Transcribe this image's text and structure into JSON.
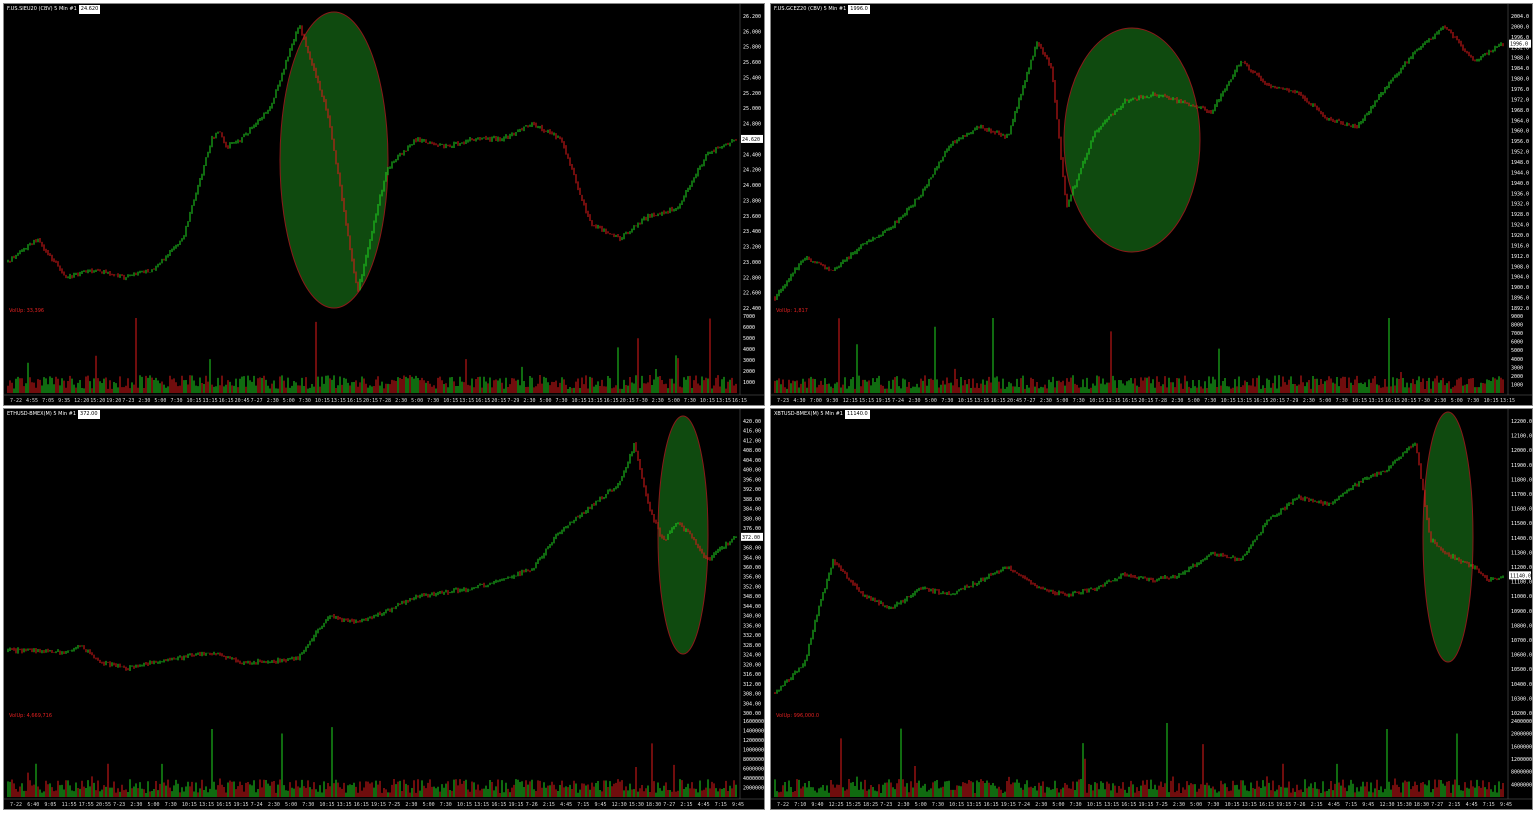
{
  "colors": {
    "up": "#1fd61f",
    "down": "#e01a1a",
    "background": "#000000",
    "highlight_fill": "#0f4a0f",
    "highlight_stroke": "#8b1a1a"
  },
  "panes": [
    {
      "id": "tl",
      "title": "F.US.SIEU20 (CBV)  5 Min  #1",
      "price_tag": "24.620",
      "volume_label": "VolUp: 33,396",
      "price_ticks": [
        "26.200",
        "26.000",
        "25.800",
        "25.600",
        "25.400",
        "25.200",
        "25.000",
        "24.800",
        "24.600",
        "24.400",
        "24.200",
        "24.000",
        "23.800",
        "23.600",
        "23.400",
        "23.200",
        "23.000",
        "22.800",
        "22.600",
        "22.400"
      ],
      "volume_ticks": [
        "7000",
        "6000",
        "5000",
        "4000",
        "3000",
        "2000",
        "1000"
      ],
      "time_ticks": [
        "7-22",
        "4:55",
        "7:05",
        "9:35",
        "12:20",
        "15:20",
        "19:20",
        "7-23",
        "2:30",
        "5:00",
        "7:30",
        "10:15",
        "13:15",
        "16:15",
        "20:45",
        "7-27",
        "2:30",
        "5:00",
        "7:30",
        "10:15",
        "13:15",
        "16:15",
        "20:15",
        "7-28",
        "2:30",
        "5:00",
        "7:30",
        "10:15",
        "13:15",
        "16:15",
        "20:15",
        "7-29",
        "2:30",
        "5:00",
        "7:30",
        "10:15",
        "13:15",
        "16:15",
        "20:15",
        "7-30",
        "2:30",
        "5:00",
        "7:30",
        "10:15",
        "13:15",
        "16:15"
      ]
    },
    {
      "id": "tr",
      "title": "F.US.GCEZ20 (CBV)  5 Min  #1",
      "price_tag": "1996.0",
      "volume_label": "VolUp: 1,817",
      "price_ticks": [
        "2004.0",
        "2000.0",
        "1996.0",
        "1992.0",
        "1988.0",
        "1984.0",
        "1980.0",
        "1976.0",
        "1972.0",
        "1968.0",
        "1964.0",
        "1960.0",
        "1956.0",
        "1952.0",
        "1948.0",
        "1944.0",
        "1940.0",
        "1936.0",
        "1932.0",
        "1928.0",
        "1924.0",
        "1920.0",
        "1916.0",
        "1912.0",
        "1908.0",
        "1904.0",
        "1900.0",
        "1896.0",
        "1892.0"
      ],
      "volume_ticks": [
        "9000",
        "8000",
        "7000",
        "6000",
        "5000",
        "4000",
        "3000",
        "2000",
        "1000"
      ],
      "time_ticks": [
        "7-23",
        "4:30",
        "7:00",
        "9:30",
        "12:15",
        "15:15",
        "19:15",
        "7-24",
        "2:30",
        "5:00",
        "7:30",
        "10:15",
        "13:15",
        "16:15",
        "20:45",
        "7-27",
        "2:30",
        "5:00",
        "7:30",
        "10:15",
        "13:15",
        "16:15",
        "20:15",
        "7-28",
        "2:30",
        "5:00",
        "7:30",
        "10:15",
        "13:15",
        "16:15",
        "20:15",
        "7-29",
        "2:30",
        "5:00",
        "7:30",
        "10:15",
        "13:15",
        "16:15",
        "20:15",
        "7-30",
        "2:30",
        "5:00",
        "7:30",
        "10:15",
        "13:15"
      ]
    },
    {
      "id": "bl",
      "title": "ETHUSD-BMEX(M)  5 Min  #1",
      "price_tag": "372.00",
      "volume_label": "VolUp: 4,669,716",
      "price_ticks": [
        "420.00",
        "416.00",
        "412.00",
        "408.00",
        "404.00",
        "400.00",
        "396.00",
        "392.00",
        "388.00",
        "384.00",
        "380.00",
        "376.00",
        "372.00",
        "368.00",
        "364.00",
        "360.00",
        "356.00",
        "352.00",
        "348.00",
        "344.00",
        "340.00",
        "336.00",
        "332.00",
        "328.00",
        "324.00",
        "320.00",
        "316.00",
        "312.00",
        "308.00",
        "304.00",
        "300.00"
      ],
      "volume_ticks": [
        "160000000",
        "140000000",
        "120000000",
        "100000000",
        "80000000",
        "60000000",
        "40000000",
        "20000000"
      ],
      "time_ticks": [
        "7-22",
        "6:40",
        "9:05",
        "11:55",
        "17:55",
        "20:55",
        "7-23",
        "2:30",
        "5:00",
        "7:30",
        "10:15",
        "13:15",
        "16:15",
        "19:15",
        "7-24",
        "2:30",
        "5:00",
        "7:30",
        "10:15",
        "13:15",
        "16:15",
        "19:15",
        "7-25",
        "2:30",
        "5:00",
        "7:30",
        "10:15",
        "13:15",
        "16:15",
        "19:15",
        "7-26",
        "2:15",
        "4:45",
        "7:15",
        "9:45",
        "12:30",
        "15:30",
        "18:30",
        "7-27",
        "2:15",
        "4:45",
        "7:15",
        "9:45"
      ]
    },
    {
      "id": "br",
      "title": "XBTUSD-BMEX(M)  5 Min  #1",
      "price_tag": "11140.0",
      "volume_label": "VolUp: 996,000.0",
      "price_ticks": [
        "12200.0",
        "12100.0",
        "12000.0",
        "11900.0",
        "11800.0",
        "11700.0",
        "11600.0",
        "11500.0",
        "11400.0",
        "11300.0",
        "11200.0",
        "11100.0",
        "11000.0",
        "10900.0",
        "10800.0",
        "10700.0",
        "10600.0",
        "10500.0",
        "10400.0",
        "10300.0",
        "10200.0"
      ],
      "volume_ticks": [
        "240000000",
        "200000000",
        "160000000",
        "120000000",
        "80000000",
        "40000000"
      ],
      "time_ticks": [
        "7-22",
        "7:10",
        "9:40",
        "12:25",
        "15:25",
        "18:25",
        "7-23",
        "2:30",
        "5:00",
        "7:30",
        "10:15",
        "13:15",
        "16:15",
        "19:15",
        "7-24",
        "2:30",
        "5:00",
        "7:30",
        "10:15",
        "13:15",
        "16:15",
        "19:15",
        "7-25",
        "2:30",
        "5:00",
        "7:30",
        "10:15",
        "13:15",
        "16:15",
        "19:15",
        "7-26",
        "2:15",
        "4:45",
        "7:15",
        "9:45",
        "12:30",
        "15:30",
        "18:30",
        "7-27",
        "2:15",
        "4:45",
        "7:15",
        "9:45"
      ]
    }
  ],
  "chart_data": [
    {
      "type": "line",
      "pane": "tl",
      "ylim": [
        22.4,
        26.2
      ],
      "x": [
        0,
        4,
        8,
        12,
        16,
        20,
        24,
        28,
        29,
        30,
        32,
        34,
        36,
        40,
        44,
        48,
        52,
        56,
        60,
        64,
        68,
        72,
        76,
        80,
        84,
        88,
        92,
        96,
        100
      ],
      "series": [
        {
          "values": [
            23.0,
            23.3,
            22.8,
            22.9,
            22.8,
            22.9,
            23.3,
            24.6,
            24.7,
            24.5,
            24.6,
            24.8,
            25.0,
            26.1,
            24.9,
            22.6,
            24.2,
            24.6,
            24.5,
            24.6,
            24.6,
            24.8,
            24.6,
            23.5,
            23.3,
            23.6,
            23.7,
            24.4,
            24.6
          ]
        }
      ]
    },
    {
      "type": "line",
      "pane": "tr",
      "ylim": [
        1890,
        2006
      ],
      "x": [
        0,
        4,
        8,
        12,
        16,
        20,
        24,
        28,
        32,
        36,
        38,
        40,
        44,
        48,
        52,
        56,
        60,
        64,
        68,
        72,
        76,
        80,
        84,
        88,
        92,
        96,
        100
      ],
      "series": [
        {
          "values": [
            1894,
            1910,
            1905,
            1915,
            1922,
            1935,
            1955,
            1962,
            1958,
            1996,
            1985,
            1930,
            1960,
            1972,
            1975,
            1972,
            1968,
            1988,
            1978,
            1975,
            1965,
            1962,
            1978,
            1992,
            2002,
            1988,
            1995
          ]
        }
      ]
    },
    {
      "type": "line",
      "pane": "bl",
      "ylim": [
        296,
        422
      ],
      "x": [
        0,
        4,
        8,
        10,
        12,
        16,
        20,
        24,
        28,
        32,
        36,
        40,
        44,
        48,
        52,
        56,
        60,
        64,
        68,
        72,
        76,
        80,
        84,
        86,
        88,
        90,
        92,
        94,
        96,
        100
      ],
      "series": [
        {
          "values": [
            323,
            323,
            322,
            325,
            319,
            315,
            318,
            320,
            322,
            318,
            318,
            320,
            338,
            335,
            340,
            346,
            348,
            350,
            354,
            358,
            375,
            385,
            395,
            412,
            385,
            370,
            378,
            372,
            362,
            372
          ]
        }
      ]
    },
    {
      "type": "line",
      "pane": "br",
      "ylim": [
        10150,
        12250
      ],
      "x": [
        0,
        4,
        6,
        8,
        12,
        16,
        20,
        24,
        28,
        32,
        36,
        40,
        44,
        48,
        52,
        56,
        60,
        64,
        68,
        72,
        76,
        80,
        84,
        88,
        90,
        92,
        94,
        96,
        98,
        100
      ],
      "series": [
        {
          "values": [
            10300,
            10500,
            10900,
            11250,
            11000,
            10900,
            11050,
            11000,
            11100,
            11200,
            11050,
            11000,
            11050,
            11150,
            11100,
            11150,
            11300,
            11250,
            11550,
            11700,
            11650,
            11800,
            11900,
            12100,
            11400,
            11300,
            11250,
            11200,
            11100,
            11140
          ]
        }
      ]
    }
  ]
}
